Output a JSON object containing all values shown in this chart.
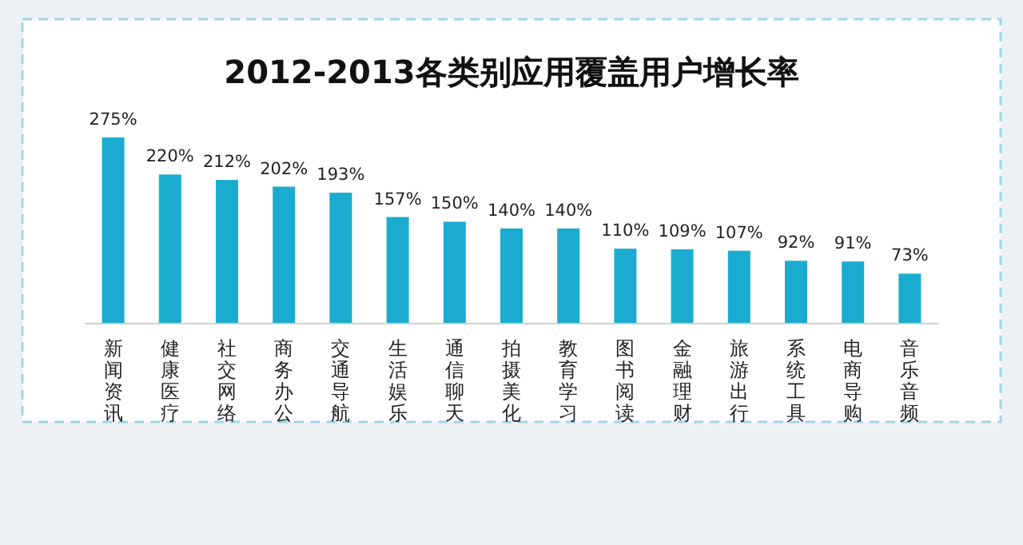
{
  "chart_data": {
    "type": "bar",
    "title": "2012-2013各类别应用覆盖用户增长率",
    "categories": [
      "新闻资讯",
      "健康医疗",
      "社交网络",
      "商务办公",
      "交通导航",
      "生活娱乐",
      "通信聊天",
      "拍摄美化",
      "教育学习",
      "图书阅读",
      "金融理财",
      "旅游出行",
      "系统工具",
      "电商导购",
      "音乐音频"
    ],
    "values": [
      275,
      220,
      212,
      202,
      193,
      157,
      150,
      140,
      140,
      110,
      109,
      107,
      92,
      91,
      73
    ],
    "value_labels": [
      "275%",
      "220%",
      "212%",
      "202%",
      "193%",
      "157%",
      "150%",
      "140%",
      "140%",
      "110%",
      "109%",
      "107%",
      "92%",
      "91%",
      "73%"
    ],
    "color": "#1aaccf"
  }
}
